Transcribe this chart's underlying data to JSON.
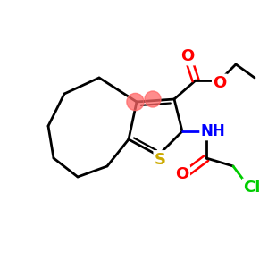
{
  "background_color": "#ffffff",
  "atom_colors": {
    "C": "#000000",
    "O": "#ff0000",
    "S": "#ccaa00",
    "N": "#0000ff",
    "Cl": "#00cc00",
    "H": "#000000"
  },
  "highlight_color": "#ff6666",
  "figsize": [
    3.0,
    3.0
  ],
  "dpi": 100,
  "xlim": [
    0,
    10
  ],
  "ylim": [
    0,
    10
  ]
}
